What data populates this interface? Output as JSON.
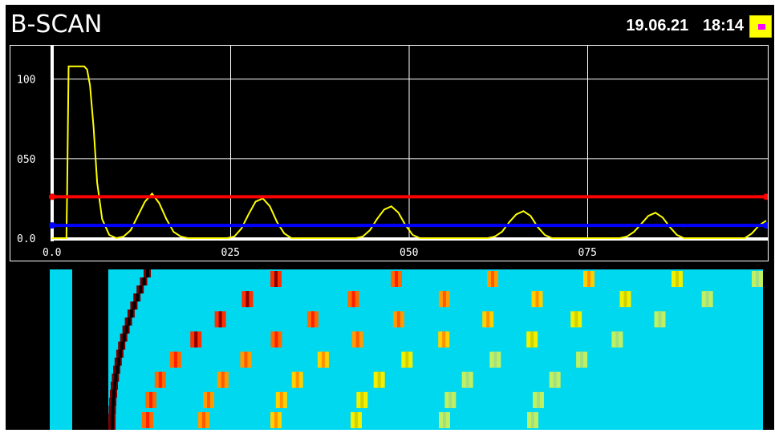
{
  "screen": {
    "title": "B-SCAN",
    "date": "19.06.21",
    "time": "18:14",
    "indicator_color": "#ffff00",
    "indicator_dot_color": "#ff00ff"
  },
  "chart_data": {
    "type": "line",
    "title": "",
    "xlabel": "",
    "ylabel": "",
    "x_ticks": [
      "0.0",
      "025",
      "050",
      "075"
    ],
    "y_ticks": [
      "0.0",
      "050",
      "100"
    ],
    "xlim": [
      0,
      100
    ],
    "ylim": [
      0,
      120
    ],
    "grid": true,
    "gate_levels": [
      {
        "name": "",
        "value": 26,
        "color": "#ff0000"
      },
      {
        "name": "",
        "value": 8,
        "color": "#0000ff"
      }
    ],
    "series": [
      {
        "name": "",
        "color": "#ffff00",
        "x": [
          0,
          2,
          2.1,
          2.3,
          3.5,
          4.5,
          4.9,
          5.3,
          5.8,
          6.3,
          7.0,
          8.0,
          9.0,
          10.0,
          11.0,
          12.0,
          13.0,
          14.0,
          15.0,
          16.0,
          17.0,
          18.0,
          19.0,
          20.0,
          24.5,
          25.5,
          26.5,
          27.5,
          28.5,
          29.5,
          30.5,
          31.5,
          32.5,
          33.5,
          34.5,
          35.5,
          36.5,
          37.5,
          42.5,
          43.5,
          44.5,
          45.5,
          46.5,
          47.5,
          48.5,
          49.5,
          50.5,
          51.5,
          52.5,
          53.5,
          54.5,
          55.5,
          61.0,
          62.0,
          63.0,
          64.0,
          65.0,
          66.0,
          67.0,
          68.0,
          69.0,
          70.0,
          71.0,
          72.0,
          73.0,
          74.0,
          79.5,
          80.5,
          81.5,
          82.5,
          83.5,
          84.5,
          85.5,
          86.5,
          87.5,
          88.5,
          89.5,
          90.5,
          91.5,
          92.5,
          97.0,
          98.0,
          99.0,
          100.0
        ],
        "values": [
          0,
          0,
          30,
          108,
          108,
          108,
          106,
          96,
          70,
          35,
          12,
          2,
          0,
          1,
          5,
          14,
          23,
          28,
          22,
          12,
          4,
          1,
          0,
          0,
          0,
          1,
          6,
          15,
          23,
          25,
          20,
          10,
          3,
          0,
          0,
          0,
          0,
          0,
          0,
          1,
          5,
          12,
          18,
          20,
          16,
          8,
          2,
          0,
          0,
          0,
          0,
          0,
          0,
          1,
          4,
          10,
          15,
          17,
          14,
          7,
          2,
          0,
          0,
          0,
          0,
          0,
          0,
          1,
          4,
          9,
          14,
          16,
          13,
          7,
          2,
          0,
          0,
          0,
          0,
          0,
          0,
          3,
          8,
          11
        ]
      }
    ]
  },
  "bscan": {
    "background_color": "#00d8f0",
    "left_strip_color": "#00d8f0"
  }
}
